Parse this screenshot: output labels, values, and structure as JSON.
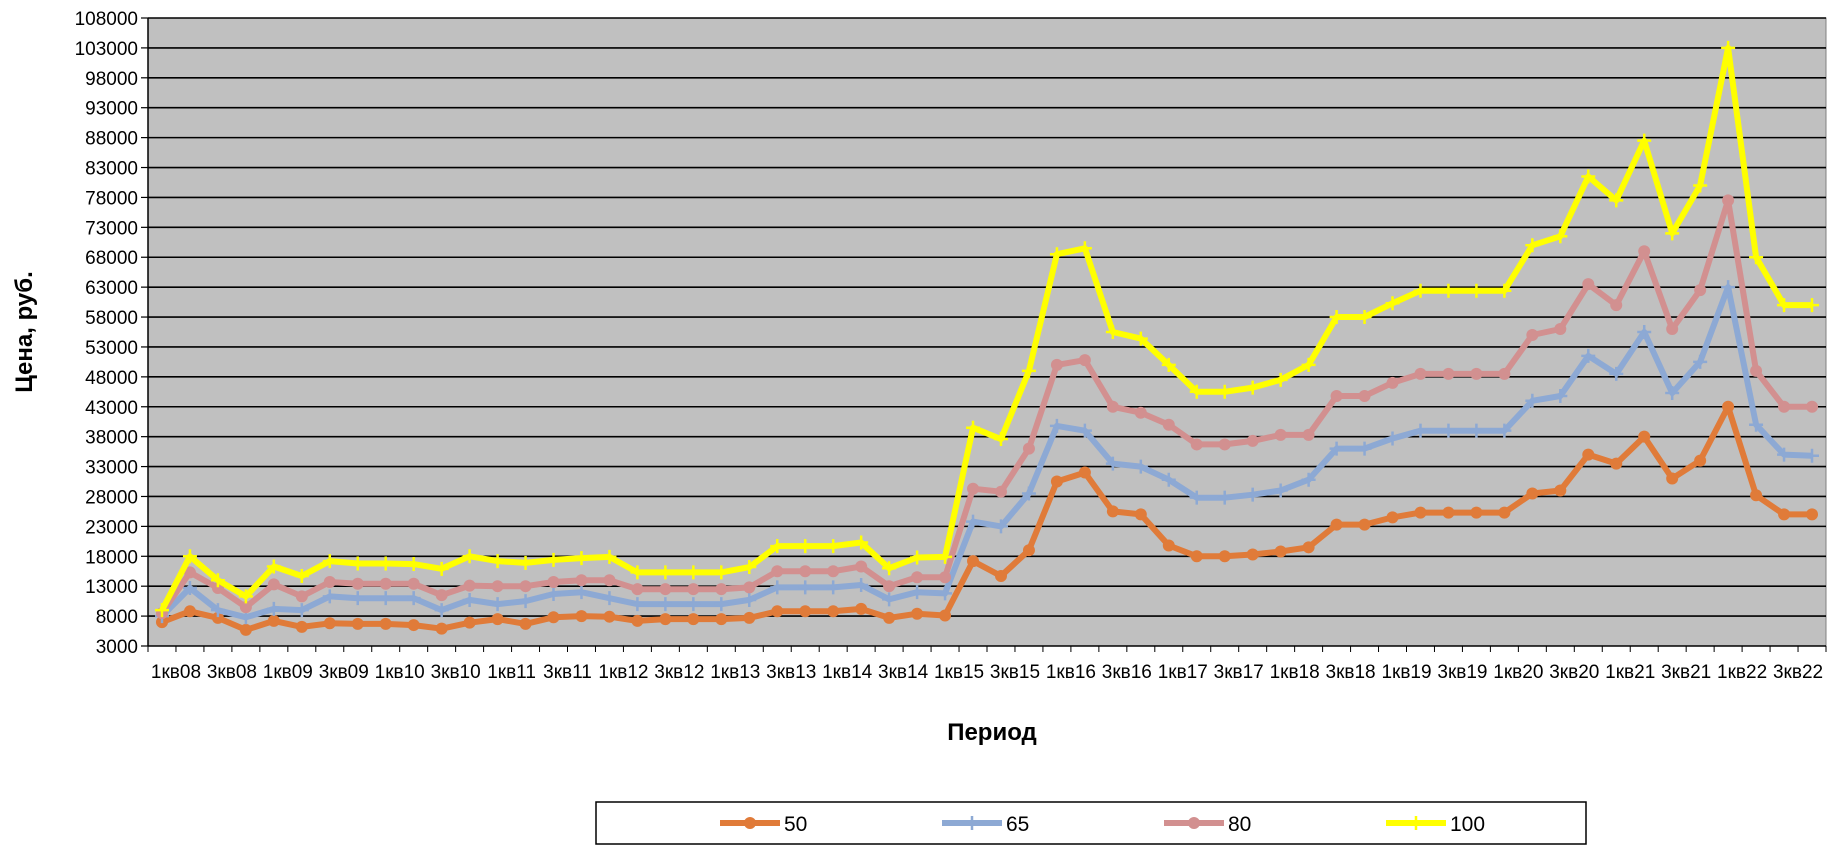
{
  "chart_data": {
    "type": "line",
    "title": "",
    "xlabel": "Период",
    "ylabel": "Цена, руб.",
    "ylim": [
      3000,
      108000
    ],
    "yticks": [
      3000,
      8000,
      13000,
      18000,
      23000,
      28000,
      33000,
      38000,
      43000,
      48000,
      53000,
      58000,
      63000,
      68000,
      73000,
      78000,
      83000,
      88000,
      93000,
      98000,
      103000,
      108000
    ],
    "grid": true,
    "legend_position": "bottom",
    "x_tick_labels": [
      "1кв08",
      "3кв08",
      "1кв09",
      "3кв09",
      "1кв10",
      "3кв10",
      "1кв11",
      "3кв11",
      "1кв12",
      "3кв12",
      "1кв13",
      "3кв13",
      "1кв14",
      "3кв14",
      "1кв15",
      "3кв15",
      "1кв16",
      "3кв16",
      "1кв17",
      "3кв17",
      "1кв18",
      "3кв18",
      "1кв19",
      "3кв19",
      "1кв20",
      "3кв20",
      "1кв21",
      "3кв21",
      "1кв22",
      "3кв22"
    ],
    "series": [
      {
        "name": "50",
        "color": "#E07B39",
        "marker": "circle",
        "values": [
          7000,
          8800,
          7700,
          5700,
          7200,
          6200,
          6800,
          6700,
          6700,
          6500,
          5900,
          6900,
          7500,
          6700,
          7800,
          8000,
          7900,
          7200,
          7500,
          7500,
          7500,
          7700,
          8800,
          8800,
          8800,
          9200,
          7700,
          8400,
          8100,
          17200,
          14700,
          19000,
          30500,
          32000,
          25500,
          25000,
          19800,
          18000,
          18000,
          18300,
          18800,
          19500,
          23300,
          23300,
          24500,
          25300,
          25300,
          25300,
          25300,
          28500,
          29000,
          35000,
          33500,
          38000,
          31000,
          34000,
          43000,
          28200,
          25000,
          25000
        ]
      },
      {
        "name": "65",
        "color": "#8DA9D4",
        "marker": "plus",
        "values": [
          8000,
          12700,
          9000,
          7800,
          9200,
          9000,
          11300,
          11000,
          11000,
          11000,
          9000,
          10700,
          10000,
          10500,
          11700,
          12000,
          11000,
          10000,
          10000,
          10000,
          10000,
          10700,
          12800,
          12800,
          12800,
          13200,
          10800,
          12000,
          11800,
          23800,
          23000,
          28500,
          39800,
          39000,
          33500,
          33000,
          30800,
          27800,
          27800,
          28300,
          29000,
          30800,
          36000,
          36000,
          37700,
          39000,
          39000,
          39000,
          39000,
          44000,
          44800,
          51500,
          48500,
          55500,
          45300,
          50500,
          63000,
          40000,
          35000,
          34800
        ]
      },
      {
        "name": "80",
        "color": "#D29090",
        "marker": "circle",
        "values": [
          8500,
          15300,
          12700,
          9500,
          13300,
          11300,
          13700,
          13400,
          13400,
          13400,
          11500,
          13100,
          13000,
          13000,
          13700,
          14000,
          14000,
          12500,
          12500,
          12500,
          12500,
          12800,
          15500,
          15500,
          15500,
          16300,
          13000,
          14500,
          14500,
          29300,
          28800,
          36000,
          50000,
          50800,
          43000,
          42000,
          40000,
          36700,
          36700,
          37300,
          38300,
          38300,
          44800,
          44800,
          47000,
          48500,
          48500,
          48500,
          48500,
          55000,
          56000,
          63500,
          60000,
          69000,
          56000,
          62500,
          77500,
          49000,
          43000,
          43000
        ]
      },
      {
        "name": "100",
        "color": "#FFFF00",
        "marker": "plus",
        "values": [
          9000,
          18000,
          14000,
          11300,
          16300,
          14700,
          17200,
          16800,
          16800,
          16700,
          15900,
          18000,
          17200,
          16900,
          17400,
          17700,
          17900,
          15300,
          15300,
          15300,
          15300,
          16200,
          19700,
          19700,
          19700,
          20300,
          16000,
          17800,
          17900,
          39500,
          37600,
          49000,
          68500,
          69500,
          55500,
          54400,
          50000,
          45500,
          45500,
          46200,
          47500,
          50000,
          58000,
          58000,
          60300,
          62400,
          62400,
          62400,
          62400,
          70000,
          71500,
          81500,
          77500,
          87500,
          72000,
          80000,
          103000,
          68000,
          60000,
          60000
        ]
      }
    ]
  }
}
